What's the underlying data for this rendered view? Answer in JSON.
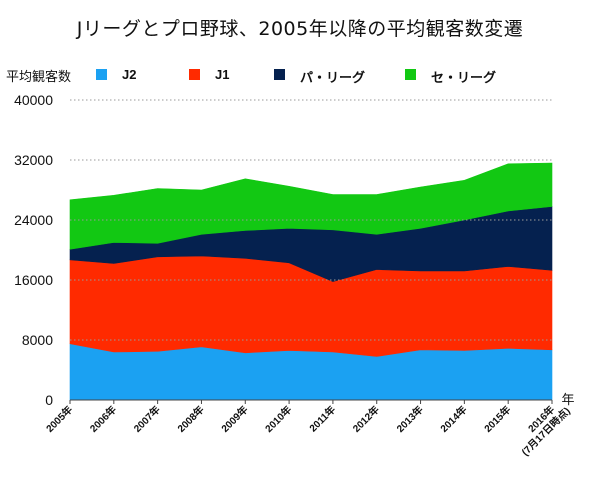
{
  "chart_data": {
    "type": "area",
    "stacked": true,
    "title": "Jリーグとプロ野球、2005年以降の平均観客数変遷",
    "ylabel": "平均観客数",
    "xlabel_unit": "年",
    "ylim": [
      0,
      40000
    ],
    "yticks": [
      "0",
      "8000",
      "16000",
      "24000",
      "32000",
      "40000"
    ],
    "ytick_values": [
      0,
      8000,
      16000,
      24000,
      32000,
      40000
    ],
    "grid": "horizontal-dotted",
    "legend_position": "top",
    "categories": [
      "2005年",
      "2006年",
      "2007年",
      "2008年",
      "2009年",
      "2010年",
      "2011年",
      "2012年",
      "2013年",
      "2014年",
      "2015年",
      "2016年\n(7月17日時点)"
    ],
    "series": [
      {
        "name": "J2",
        "color": "#1ba1f2",
        "values": [
          7500,
          6400,
          6500,
          7100,
          6300,
          6600,
          6400,
          5800,
          6700,
          6600,
          6900,
          6700
        ]
      },
      {
        "name": "J1",
        "color": "#ff2a00",
        "values": [
          11200,
          11800,
          12600,
          12100,
          12600,
          11700,
          9400,
          11600,
          10500,
          10600,
          10900,
          10600
        ]
      },
      {
        "name": "パ・リーグ",
        "color": "#05214f",
        "values": [
          1400,
          2800,
          1800,
          2900,
          3700,
          4600,
          6900,
          4700,
          5700,
          6800,
          7400,
          8500
        ]
      },
      {
        "name": "セ・リーグ",
        "color": "#12c813",
        "values": [
          6600,
          6300,
          7300,
          5900,
          6900,
          5600,
          4700,
          5300,
          5500,
          5300,
          6300,
          5800
        ]
      }
    ]
  }
}
